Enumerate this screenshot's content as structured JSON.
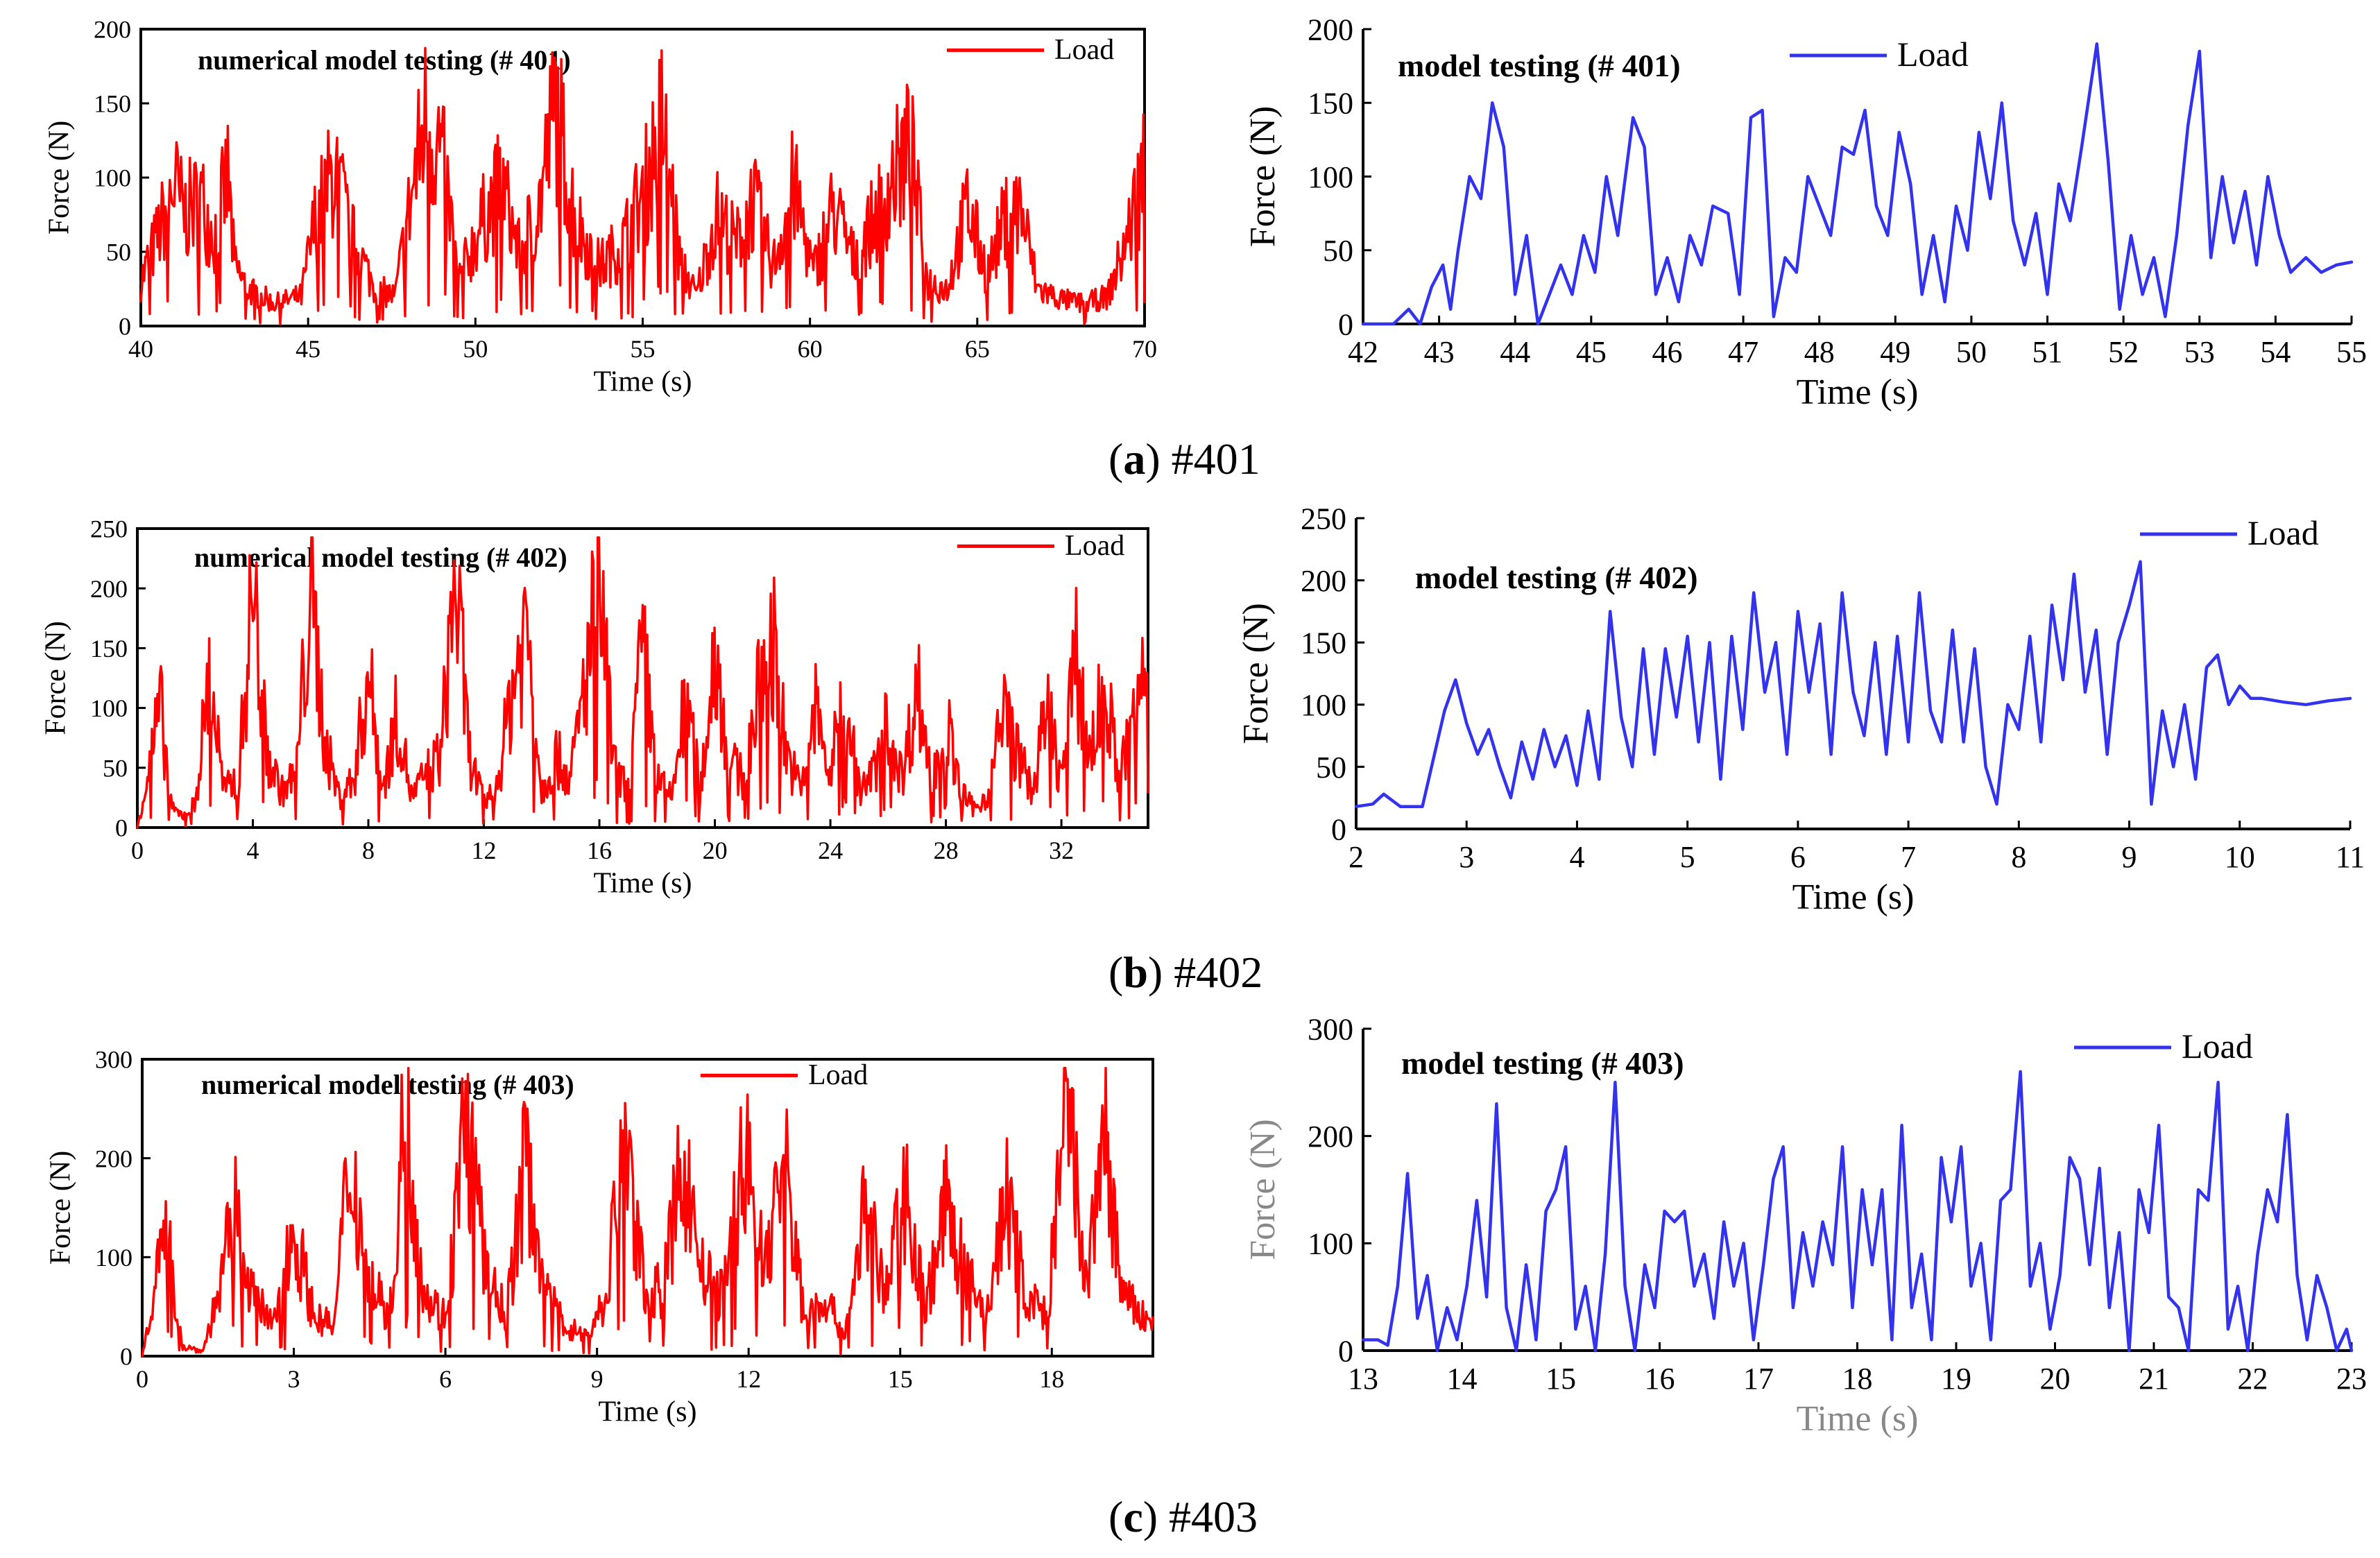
{
  "figure": {
    "captions": [
      {
        "letter": "a",
        "id": "#401"
      },
      {
        "letter": "b",
        "id": "#402"
      },
      {
        "letter": "c",
        "id": "#403"
      }
    ]
  },
  "chart_data": [
    {
      "type": "line",
      "panel": "a-left",
      "title": "numerical model testing (# 401)",
      "xlabel": "Time (s)",
      "ylabel": "Force (N)",
      "xlim": [
        40,
        70
      ],
      "ylim": [
        0,
        200
      ],
      "xticks": [
        40,
        45,
        50,
        55,
        60,
        65,
        70
      ],
      "yticks": [
        0,
        50,
        100,
        150,
        200
      ],
      "series": [
        {
          "name": "Load",
          "color": "#ff0000",
          "style": "noisy",
          "x": [
            40,
            40.5,
            41,
            41.3,
            41.8,
            42.2,
            42.6,
            42.8,
            43.2,
            44,
            44.8,
            45.2,
            45.8,
            46.3,
            47,
            47.6,
            48,
            48.5,
            49,
            49.5,
            50.2,
            50.8,
            51.3,
            51.9,
            52.4,
            53,
            53.7,
            54.4,
            55.1,
            55.6,
            56.1,
            56.6,
            57.2,
            57.8,
            58.3,
            58.9,
            59.5,
            60.1,
            60.7,
            61.3,
            61.9,
            62.5,
            63,
            63.5,
            64.1,
            64.7,
            65.3,
            65.8,
            66.3,
            66.8,
            67.5,
            68.2,
            68.9,
            69.5,
            70
          ],
          "y": [
            30,
            60,
            95,
            75,
            85,
            60,
            100,
            40,
            25,
            15,
            20,
            70,
            105,
            60,
            25,
            20,
            75,
            140,
            115,
            30,
            70,
            95,
            50,
            80,
            150,
            70,
            40,
            55,
            95,
            140,
            45,
            20,
            75,
            55,
            85,
            40,
            95,
            35,
            80,
            45,
            70,
            100,
            120,
            30,
            25,
            80,
            35,
            70,
            80,
            25,
            18,
            15,
            20,
            60,
            110
          ]
        }
      ]
    },
    {
      "type": "line",
      "panel": "a-right",
      "title": "model testing (# 401)",
      "xlabel": "Time (s)",
      "ylabel": "Force (N)",
      "xlim": [
        42,
        55
      ],
      "ylim": [
        0,
        200
      ],
      "xticks": [
        42,
        43,
        44,
        45,
        46,
        47,
        48,
        49,
        50,
        51,
        52,
        53,
        54,
        55
      ],
      "yticks": [
        0,
        50,
        100,
        150,
        200
      ],
      "series": [
        {
          "name": "Load",
          "color": "#3333ee",
          "style": "smooth",
          "x": [
            42,
            42.4,
            42.6,
            42.75,
            42.9,
            43.05,
            43.15,
            43.25,
            43.4,
            43.55,
            43.7,
            43.85,
            44.0,
            44.15,
            44.3,
            44.45,
            44.6,
            44.75,
            44.9,
            45.05,
            45.2,
            45.35,
            45.55,
            45.7,
            45.85,
            46.0,
            46.15,
            46.3,
            46.45,
            46.6,
            46.8,
            46.95,
            47.1,
            47.25,
            47.4,
            47.55,
            47.7,
            47.85,
            48.0,
            48.15,
            48.3,
            48.45,
            48.6,
            48.75,
            48.9,
            49.05,
            49.2,
            49.35,
            49.5,
            49.65,
            49.8,
            49.95,
            50.1,
            50.25,
            50.4,
            50.55,
            50.7,
            50.85,
            51.0,
            51.15,
            51.3,
            51.45,
            51.65,
            51.8,
            51.95,
            52.1,
            52.25,
            52.4,
            52.55,
            52.7,
            52.85,
            53.0,
            53.15,
            53.3,
            53.45,
            53.6,
            53.75,
            53.9,
            54.05,
            54.2,
            54.4,
            54.6,
            54.8,
            55
          ],
          "y": [
            0,
            0,
            10,
            0,
            25,
            40,
            10,
            50,
            100,
            85,
            150,
            120,
            20,
            60,
            0,
            20,
            40,
            20,
            60,
            35,
            100,
            60,
            140,
            120,
            20,
            45,
            15,
            60,
            40,
            80,
            75,
            20,
            140,
            145,
            5,
            45,
            35,
            100,
            80,
            60,
            120,
            115,
            145,
            80,
            60,
            130,
            95,
            20,
            60,
            15,
            80,
            50,
            130,
            85,
            150,
            70,
            40,
            75,
            20,
            95,
            70,
            120,
            190,
            110,
            10,
            60,
            20,
            45,
            5,
            60,
            135,
            185,
            45,
            100,
            55,
            90,
            40,
            100,
            60,
            35,
            45,
            35,
            40,
            42
          ]
        }
      ]
    },
    {
      "type": "line",
      "panel": "b-left",
      "title": "numerical model testing (# 402)",
      "xlabel": "Time (s)",
      "ylabel": "Force (N)",
      "xlim": [
        0,
        35
      ],
      "ylim": [
        0,
        250
      ],
      "xticks": [
        0,
        4,
        8,
        12,
        16,
        20,
        24,
        28,
        32
      ],
      "yticks": [
        0,
        50,
        100,
        150,
        200,
        250
      ],
      "series": [
        {
          "name": "Load",
          "color": "#ff0000",
          "style": "noisy",
          "x": [
            0,
            0.4,
            0.8,
            1.2,
            1.6,
            2.0,
            2.5,
            3.0,
            3.5,
            4.0,
            4.5,
            5.0,
            5.5,
            6.0,
            6.5,
            7.0,
            7.5,
            8.0,
            8.5,
            9.0,
            9.5,
            10.0,
            10.5,
            11.0,
            11.5,
            12.0,
            12.5,
            13.0,
            13.5,
            14.0,
            14.5,
            15.0,
            15.5,
            16.0,
            16.5,
            17.0,
            17.5,
            18.0,
            18.5,
            19.0,
            19.5,
            20.0,
            20.5,
            21.0,
            21.5,
            22.0,
            22.5,
            23.0,
            23.5,
            24.0,
            24.5,
            25.0,
            25.5,
            26.0,
            26.5,
            27.0,
            27.5,
            28.0,
            28.5,
            29.0,
            29.5,
            30.0,
            30.5,
            31.0,
            31.5,
            32.0,
            32.5,
            33.0,
            33.5,
            34.0,
            34.5,
            35
          ],
          "y": [
            0,
            50,
            100,
            15,
            10,
            20,
            130,
            30,
            40,
            200,
            60,
            30,
            45,
            200,
            70,
            25,
            40,
            130,
            30,
            95,
            25,
            45,
            60,
            210,
            60,
            20,
            40,
            120,
            170,
            30,
            60,
            40,
            120,
            210,
            50,
            30,
            150,
            40,
            25,
            110,
            30,
            150,
            55,
            40,
            110,
            160,
            60,
            30,
            100,
            40,
            130,
            30,
            45,
            90,
            40,
            120,
            40,
            90,
            30,
            15,
            30,
            100,
            60,
            30,
            100,
            40,
            140,
            60,
            120,
            40,
            90,
            150
          ]
        }
      ]
    },
    {
      "type": "line",
      "panel": "b-right",
      "title": "model testing (# 402)",
      "xlabel": "Time (s)",
      "ylabel": "Force (N)",
      "xlim": [
        2,
        11
      ],
      "ylim": [
        0,
        250
      ],
      "xticks": [
        2,
        3,
        4,
        5,
        6,
        7,
        8,
        9,
        10,
        11
      ],
      "yticks": [
        0,
        50,
        100,
        150,
        200,
        250
      ],
      "series": [
        {
          "name": "Load",
          "color": "#3333ee",
          "style": "smooth",
          "x": [
            2,
            2.15,
            2.25,
            2.4,
            2.6,
            2.8,
            2.9,
            3.0,
            3.1,
            3.2,
            3.3,
            3.4,
            3.5,
            3.6,
            3.7,
            3.8,
            3.9,
            4.0,
            4.1,
            4.2,
            4.3,
            4.4,
            4.5,
            4.6,
            4.7,
            4.8,
            4.9,
            5.0,
            5.1,
            5.2,
            5.3,
            5.4,
            5.5,
            5.6,
            5.7,
            5.8,
            5.9,
            6.0,
            6.1,
            6.2,
            6.3,
            6.4,
            6.5,
            6.6,
            6.7,
            6.8,
            6.9,
            7.0,
            7.1,
            7.2,
            7.3,
            7.4,
            7.5,
            7.6,
            7.7,
            7.8,
            7.9,
            8.0,
            8.1,
            8.2,
            8.3,
            8.4,
            8.5,
            8.6,
            8.7,
            8.8,
            8.9,
            9.0,
            9.1,
            9.2,
            9.3,
            9.4,
            9.5,
            9.6,
            9.7,
            9.8,
            9.9,
            10.0,
            10.1,
            10.2,
            10.4,
            10.6,
            10.8,
            11
          ],
          "y": [
            18,
            20,
            28,
            18,
            18,
            95,
            120,
            85,
            60,
            80,
            50,
            25,
            70,
            40,
            80,
            50,
            75,
            35,
            95,
            40,
            175,
            90,
            50,
            145,
            60,
            145,
            90,
            155,
            70,
            150,
            40,
            155,
            80,
            190,
            110,
            150,
            60,
            175,
            110,
            165,
            60,
            190,
            110,
            75,
            150,
            60,
            155,
            70,
            190,
            95,
            70,
            160,
            70,
            145,
            50,
            20,
            100,
            80,
            155,
            70,
            180,
            120,
            205,
            110,
            160,
            60,
            150,
            180,
            215,
            20,
            95,
            50,
            100,
            40,
            130,
            140,
            100,
            115,
            105,
            105,
            102,
            100,
            103,
            105
          ]
        }
      ]
    },
    {
      "type": "line",
      "panel": "c-left",
      "title": "numerical model testing (# 403)",
      "xlabel": "Time (s)",
      "ylabel": "Force (N)",
      "xlim": [
        0,
        20
      ],
      "ylim": [
        0,
        300
      ],
      "xticks": [
        0,
        3,
        6,
        9,
        12,
        15,
        18
      ],
      "yticks": [
        0,
        100,
        200,
        300
      ],
      "series": [
        {
          "name": "Load",
          "color": "#ff0000",
          "style": "noisy",
          "x": [
            0,
            0.3,
            0.5,
            0.8,
            1.2,
            1.6,
            1.8,
            2.2,
            2.6,
            3.0,
            3.4,
            3.8,
            4.1,
            4.5,
            4.9,
            5.2,
            5.6,
            6.0,
            6.4,
            6.8,
            7.2,
            7.6,
            8.0,
            8.4,
            8.8,
            9.2,
            9.5,
            9.9,
            10.3,
            10.7,
            11.1,
            11.5,
            11.9,
            12.3,
            12.7,
            13.1,
            13.5,
            13.9,
            14.3,
            14.7,
            15.1,
            15.5,
            15.9,
            16.3,
            16.7,
            17.1,
            17.5,
            17.9,
            18.3,
            18.7,
            19.0,
            19.4,
            20
          ],
          "y": [
            0,
            90,
            120,
            10,
            5,
            80,
            150,
            60,
            30,
            130,
            40,
            30,
            200,
            80,
            40,
            250,
            60,
            40,
            240,
            90,
            40,
            200,
            60,
            30,
            20,
            60,
            230,
            80,
            60,
            200,
            80,
            60,
            210,
            90,
            200,
            40,
            60,
            20,
            150,
            60,
            170,
            50,
            150,
            80,
            40,
            160,
            60,
            40,
            250,
            60,
            240,
            60,
            30
          ]
        }
      ]
    },
    {
      "type": "line",
      "panel": "c-right",
      "title": "model testing (# 403)",
      "xlabel": "Time (s)",
      "ylabel": "Force (N)",
      "xlim": [
        13,
        23
      ],
      "ylim": [
        0,
        300
      ],
      "xticks": [
        13,
        14,
        15,
        16,
        17,
        18,
        19,
        20,
        21,
        22,
        23
      ],
      "yticks": [
        0,
        100,
        200,
        300
      ],
      "series": [
        {
          "name": "Load",
          "color": "#3333ee",
          "style": "smooth",
          "x": [
            13,
            13.15,
            13.25,
            13.35,
            13.45,
            13.55,
            13.65,
            13.75,
            13.85,
            13.95,
            14.05,
            14.15,
            14.25,
            14.35,
            14.45,
            14.55,
            14.65,
            14.75,
            14.85,
            14.95,
            15.05,
            15.15,
            15.25,
            15.35,
            15.45,
            15.55,
            15.65,
            15.75,
            15.85,
            15.95,
            16.05,
            16.15,
            16.25,
            16.35,
            16.45,
            16.55,
            16.65,
            16.75,
            16.85,
            16.95,
            17.05,
            17.15,
            17.25,
            17.35,
            17.45,
            17.55,
            17.65,
            17.75,
            17.85,
            17.95,
            18.05,
            18.15,
            18.25,
            18.35,
            18.45,
            18.55,
            18.65,
            18.75,
            18.85,
            18.95,
            19.05,
            19.15,
            19.25,
            19.35,
            19.45,
            19.55,
            19.65,
            19.75,
            19.85,
            19.95,
            20.05,
            20.15,
            20.25,
            20.35,
            20.45,
            20.55,
            20.65,
            20.75,
            20.85,
            20.95,
            21.05,
            21.15,
            21.25,
            21.35,
            21.45,
            21.55,
            21.65,
            21.75,
            21.85,
            21.95,
            22.05,
            22.15,
            22.25,
            22.35,
            22.45,
            22.55,
            22.65,
            22.75,
            22.85,
            22.95,
            23
          ],
          "y": [
            10,
            10,
            5,
            60,
            165,
            30,
            70,
            0,
            40,
            10,
            60,
            140,
            50,
            230,
            40,
            0,
            80,
            10,
            130,
            150,
            190,
            20,
            60,
            0,
            90,
            250,
            60,
            0,
            80,
            40,
            130,
            120,
            130,
            60,
            90,
            30,
            120,
            60,
            100,
            10,
            80,
            160,
            190,
            40,
            110,
            60,
            120,
            80,
            190,
            40,
            150,
            80,
            150,
            10,
            210,
            40,
            90,
            10,
            180,
            120,
            190,
            60,
            100,
            10,
            140,
            150,
            260,
            60,
            100,
            20,
            70,
            180,
            160,
            80,
            170,
            40,
            110,
            0,
            150,
            110,
            210,
            50,
            40,
            0,
            150,
            140,
            250,
            20,
            60,
            0,
            90,
            150,
            120,
            220,
            70,
            10,
            70,
            40,
            0,
            20,
            0
          ]
        }
      ]
    }
  ]
}
